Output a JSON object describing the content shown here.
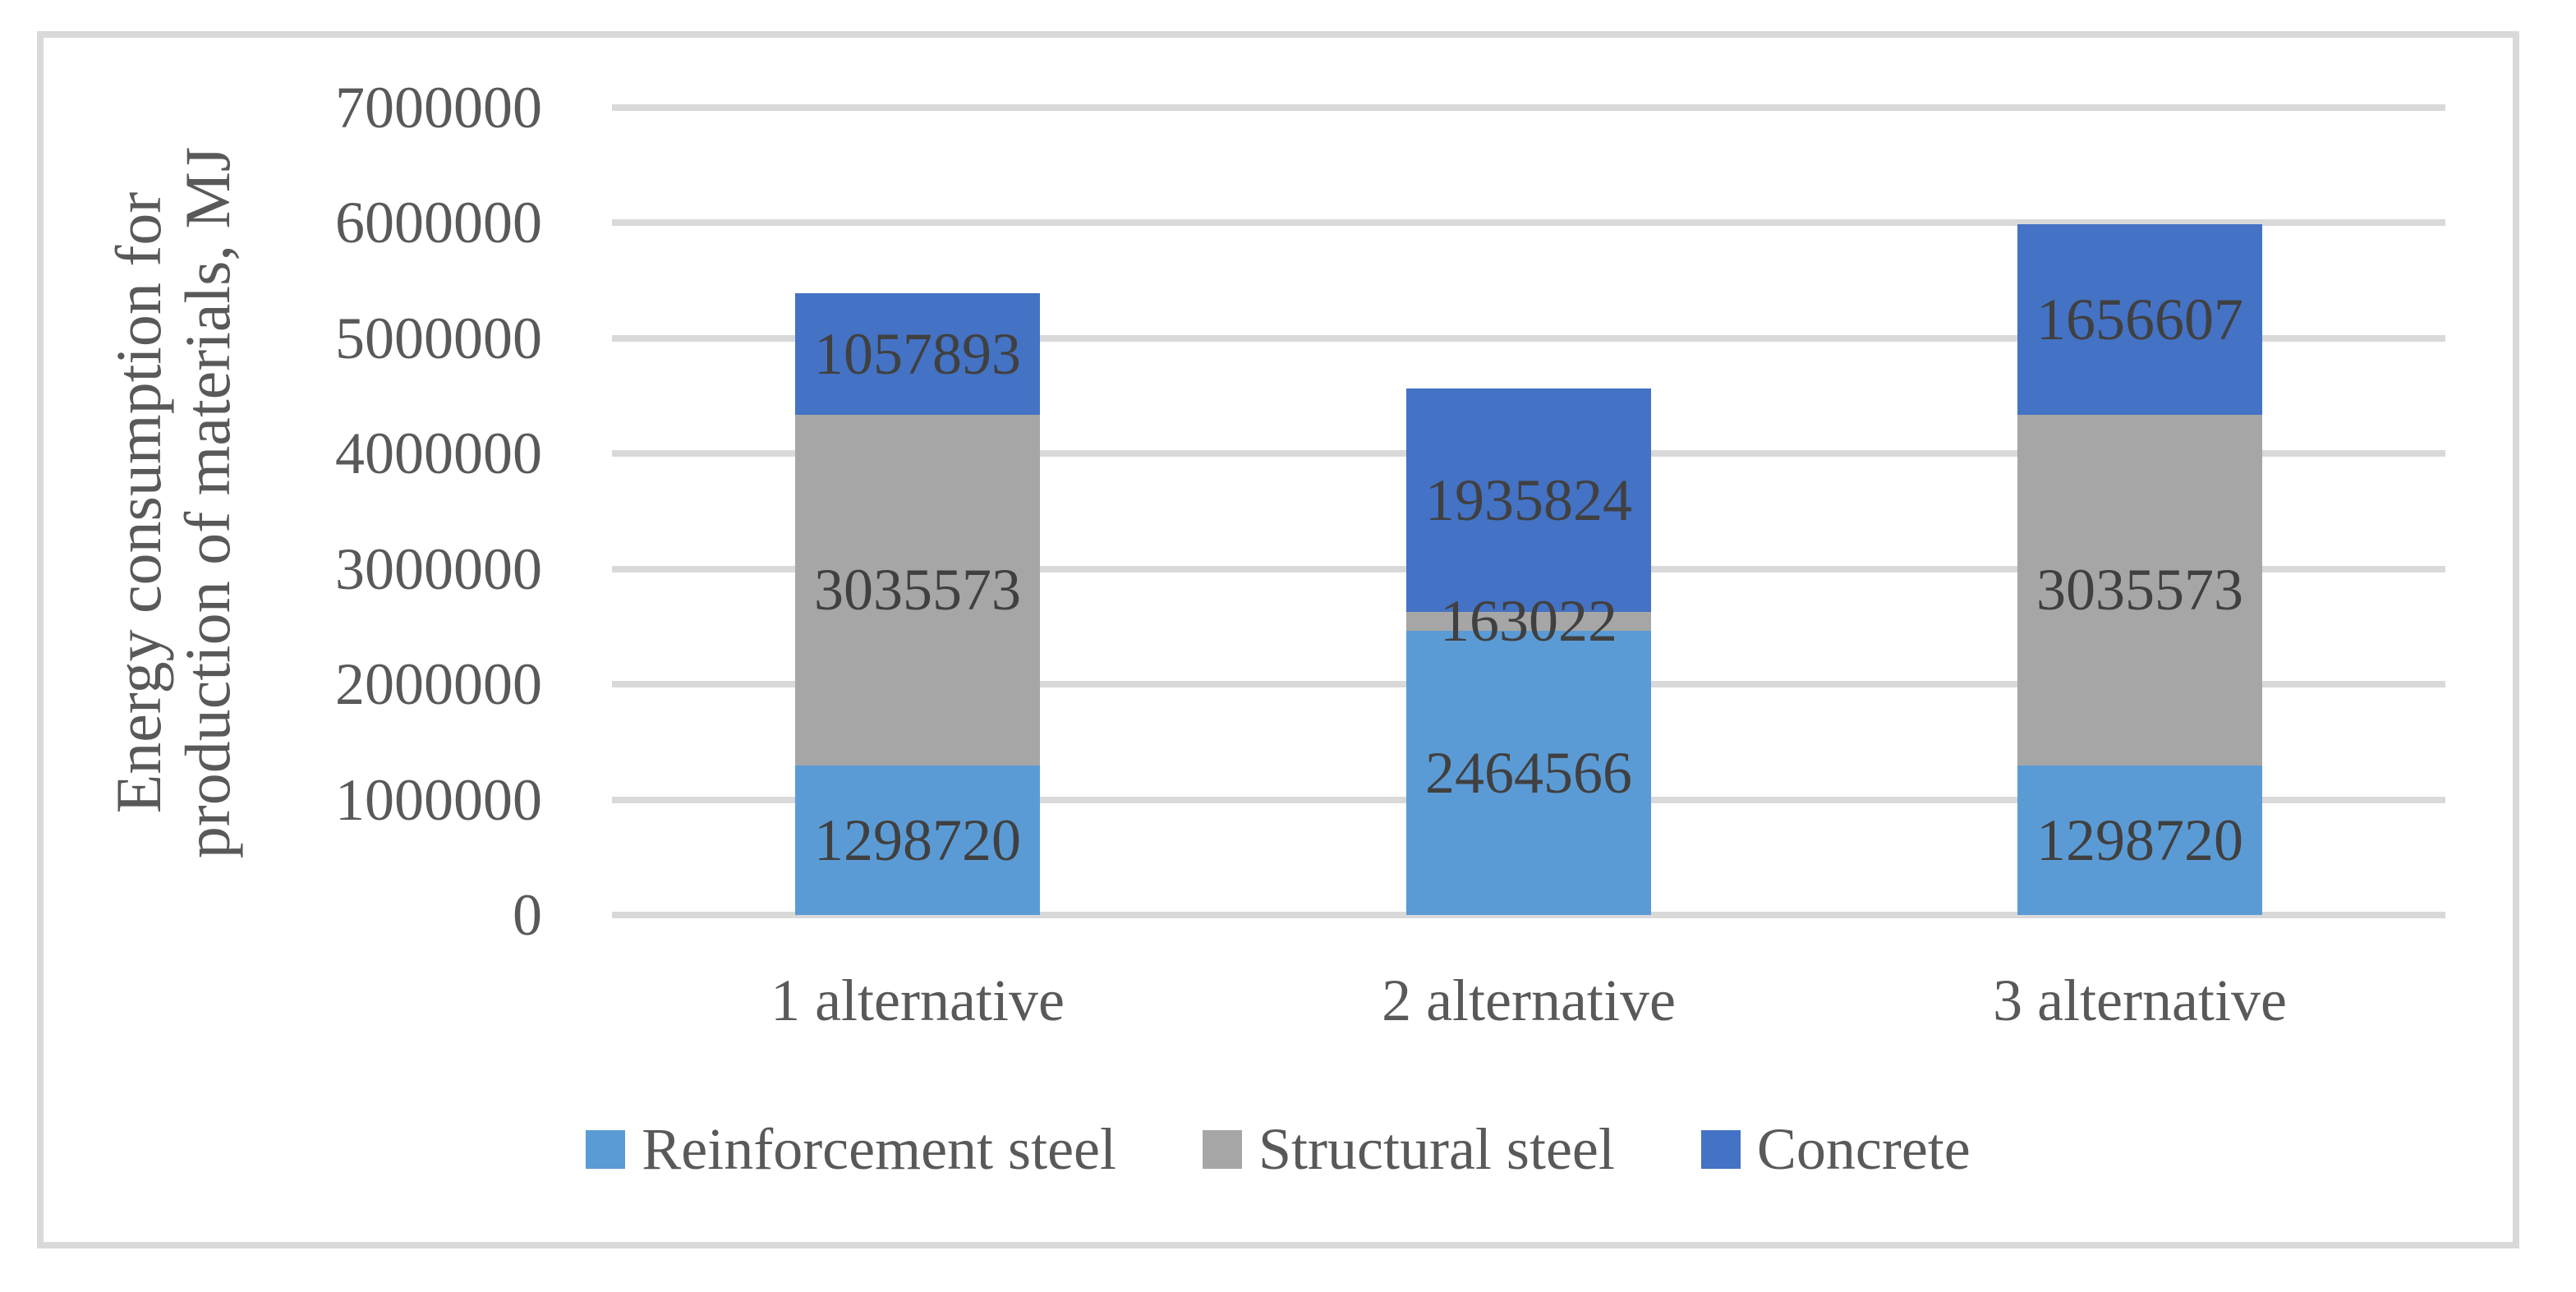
{
  "chart_data": {
    "type": "bar",
    "stacked": true,
    "categories": [
      "1 alternative",
      "2 alternative",
      "3 alternative"
    ],
    "series": [
      {
        "name": "Reinforcement steel",
        "color": "#5B9BD5",
        "values": [
          1298720,
          2464566,
          1298720
        ]
      },
      {
        "name": "Structural steel",
        "color": "#A6A6A6",
        "values": [
          3035573,
          163022,
          3035573
        ]
      },
      {
        "name": "Concrete",
        "color": "#4472C4",
        "values": [
          1057893,
          1935824,
          1656607
        ]
      }
    ],
    "data_labels": {
      "reinforcement_steel": [
        "1298720",
        "2464566",
        "1298720"
      ],
      "structural_steel": [
        "3035573",
        "163022",
        "3035573"
      ],
      "concrete": [
        "1057893",
        "1935824",
        "1656607"
      ]
    },
    "ylabel_lines": [
      "Energy consumption for",
      "production of materials, MJ"
    ],
    "ylabel": "Energy consumption for production of materials, MJ",
    "xlabel": "",
    "title": "",
    "ylim": [
      0,
      7000000
    ],
    "ytick_step": 1000000,
    "yticks": [
      "0",
      "1000000",
      "2000000",
      "3000000",
      "4000000",
      "5000000",
      "6000000",
      "7000000"
    ],
    "grid": true,
    "legend_position": "bottom",
    "colors": {
      "grid": "#D9D9D9",
      "frame_border": "#D9D9D9",
      "axis_text": "#595959",
      "data_label_text": "#404040",
      "background": "#FFFFFF"
    }
  }
}
